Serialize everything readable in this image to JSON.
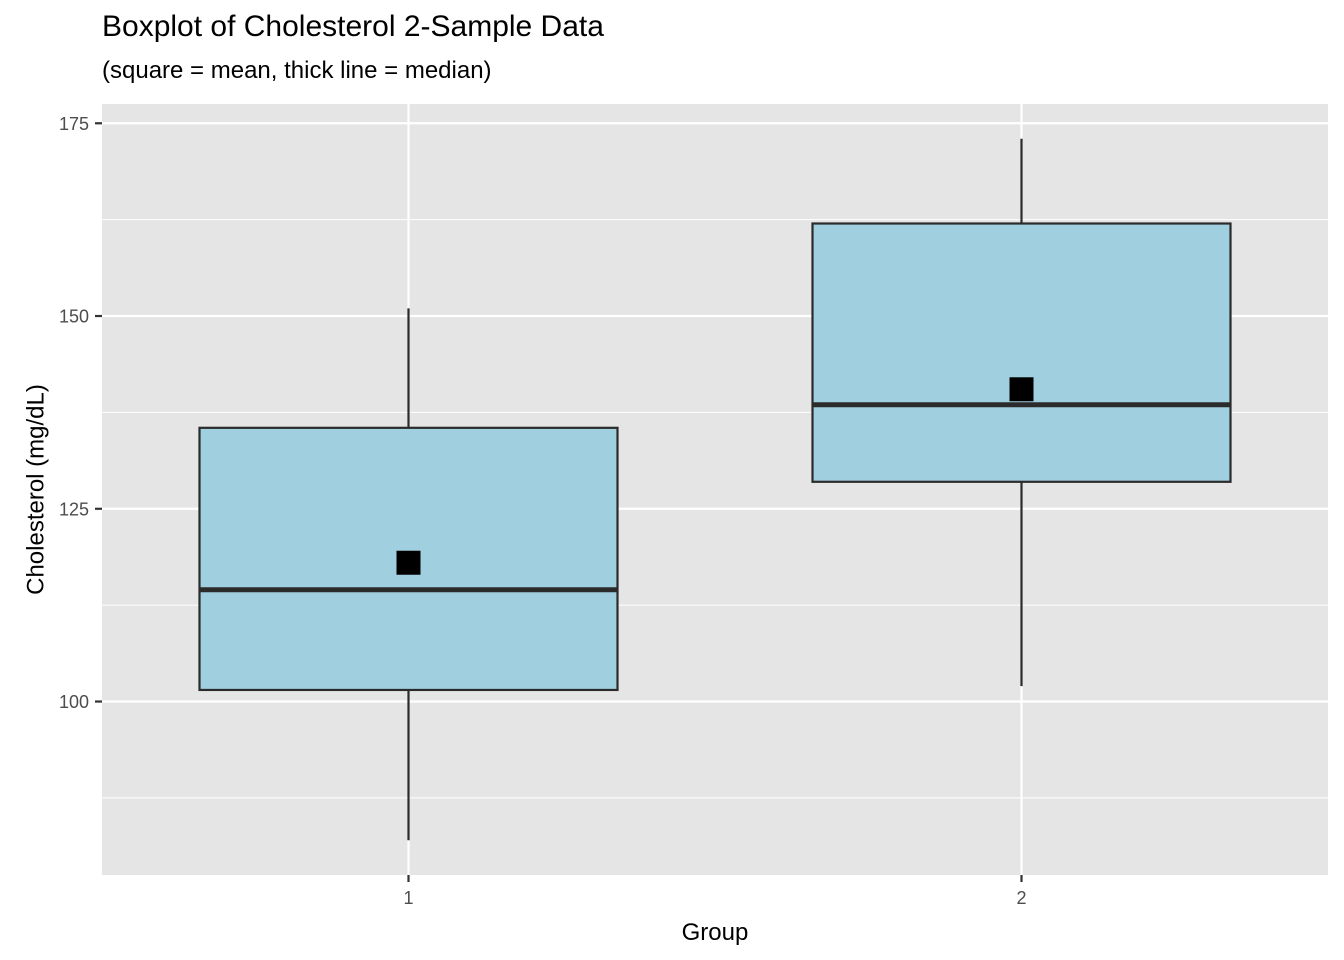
{
  "chart_data": {
    "type": "boxplot",
    "title": "Boxplot of Cholesterol 2-Sample Data",
    "subtitle": "(square = mean, thick line = median)",
    "xlabel": "Group",
    "ylabel": "Cholesterol (mg/dL)",
    "categories": [
      "1",
      "2"
    ],
    "ylim": [
      77.5,
      177.5
    ],
    "y_ticks": [
      100,
      125,
      150,
      175
    ],
    "y_minor_ticks": [
      87.5,
      112.5,
      137.5,
      162.5
    ],
    "grid": true,
    "boxes": [
      {
        "group": "1",
        "whisker_low": 82,
        "q1": 101.5,
        "median": 114.5,
        "q3": 135.5,
        "whisker_high": 151,
        "mean": 118
      },
      {
        "group": "2",
        "whisker_low": 102,
        "q1": 128.5,
        "median": 138.5,
        "q3": 162,
        "whisker_high": 173,
        "mean": 140.5
      }
    ],
    "colors": {
      "panel_background": "#e5e5e5",
      "grid": "#ffffff",
      "box_fill": "#a0cfe0",
      "box_outline": "#2b2b2b",
      "mean_marker": "#000000"
    }
  }
}
